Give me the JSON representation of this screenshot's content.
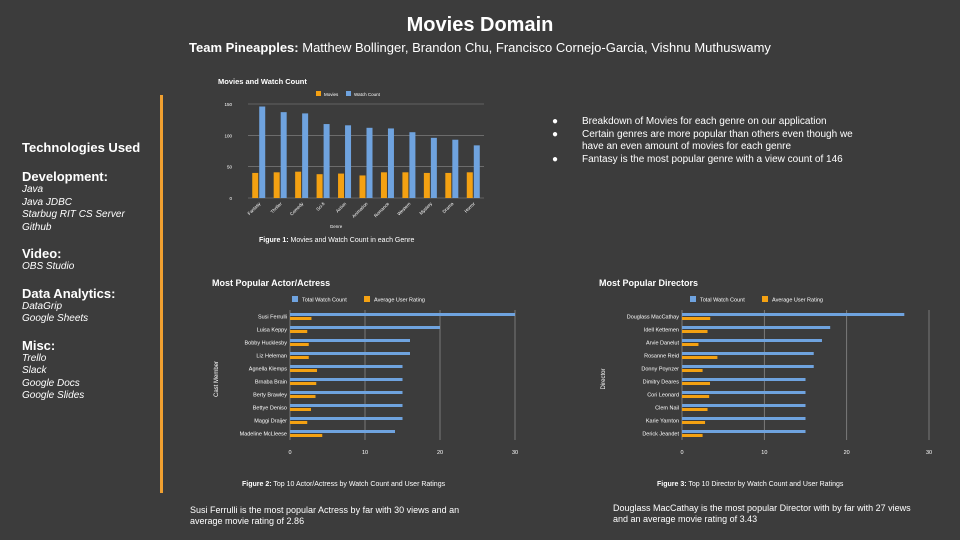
{
  "header": {
    "title": "Movies Domain",
    "team_label": "Team Pineapples:",
    "team_members": " Matthew Bollinger, Brandon Chu, Francisco Cornejo-Garcia, Vishnu Muthuswamy"
  },
  "sidebar": {
    "heading": "Technologies Used",
    "sections": [
      {
        "title": "Development:",
        "items": [
          "Java",
          "Java JDBC",
          "Starbug RIT CS Server",
          "Github"
        ]
      },
      {
        "title": "Video:",
        "items": [
          "OBS Studio"
        ]
      },
      {
        "title": "Data Analytics:",
        "items": [
          "DataGrip",
          "Google Sheets"
        ]
      },
      {
        "title": "Misc:",
        "items": [
          "Trello",
          "Slack",
          "Google Docs",
          "Google Slides"
        ]
      }
    ]
  },
  "bullets": [
    "Breakdown of Movies for each genre on our application",
    "Certain genres are more popular than others even though we have an even amount of movies for each genre",
    "Fantasy is the most popular genre with a view count of 146"
  ],
  "captions": {
    "fig1_label": "Figure 1:",
    "fig1_text": " Movies and Watch Count in each Genre",
    "fig2_label": "Figure 2:",
    "fig2_text": " Top 10 Actor/Actress by Watch Count and User Ratings",
    "fig3_label": "Figure 3:",
    "fig3_text": " Top 10 Director by Watch Count and User Ratings"
  },
  "descriptions": {
    "actor": "Susi Ferrulli is the most popular Actress by far with 30 views and an average movie rating of 2.86",
    "director": "Douglass MacCathay is the most popular Director with by far with 27 views and an average movie rating of 3.43"
  },
  "colors": {
    "blue": "#6fa3df",
    "orange": "#f4a112",
    "accent_line": "#f0a030",
    "grid": "#888888",
    "background": "#3c3c3c"
  },
  "chart_data": [
    {
      "type": "bar",
      "title": "Movies and Watch Count",
      "xlabel": "Genre",
      "ylabel": "",
      "ylim": [
        0,
        150
      ],
      "yticks": [
        0,
        50,
        100,
        150
      ],
      "legend": "top",
      "grid": true,
      "categories": [
        "Fantasy",
        "Thriller",
        "Comedy",
        "Sci-fi",
        "Action",
        "Animation",
        "Romance",
        "Western",
        "Mystery",
        "Drama",
        "Horror"
      ],
      "series": [
        {
          "name": "Movies",
          "color": "#f4a112",
          "values": [
            40,
            41,
            42,
            38,
            39,
            36,
            41,
            41,
            40,
            40,
            41
          ]
        },
        {
          "name": "Watch Count",
          "color": "#6fa3df",
          "values": [
            146,
            137,
            135,
            118,
            116,
            112,
            111,
            105,
            96,
            93,
            84
          ]
        }
      ]
    },
    {
      "type": "bar",
      "orientation": "horizontal",
      "title": "Most Popular Actor/Actress",
      "xlabel": "",
      "ylabel": "Cast Member",
      "xlim": [
        0,
        30
      ],
      "xticks": [
        0,
        10,
        20,
        30
      ],
      "legend": "top",
      "grid": true,
      "categories": [
        "Susi Ferrulli",
        "Luisa Keppy",
        "Bobby Hucklesby",
        "Liz Heleman",
        "Agnella Klemps",
        "Brnaba Brain",
        "Berty Brawley",
        "Bettye Deniso",
        "Maggi Draijer",
        "Madeline McLleese"
      ],
      "series": [
        {
          "name": "Total Watch Count",
          "color": "#6fa3df",
          "values": [
            30,
            20,
            16,
            16,
            15,
            15,
            15,
            15,
            15,
            14
          ]
        },
        {
          "name": "Average User Rating",
          "color": "#f4a112",
          "values": [
            2.86,
            2.3,
            2.5,
            2.5,
            3.6,
            3.5,
            3.4,
            2.8,
            2.3,
            4.3
          ]
        }
      ]
    },
    {
      "type": "bar",
      "orientation": "horizontal",
      "title": "Most Popular Directors",
      "xlabel": "",
      "ylabel": "Director",
      "xlim": [
        0,
        30
      ],
      "xticks": [
        0,
        10,
        20,
        30
      ],
      "legend": "top",
      "grid": true,
      "categories": [
        "Douglass MacCathay",
        "Idell Kettemen",
        "Arvie Danelut",
        "Rosanne Reid",
        "Donny Poynzer",
        "Dimitry Deares",
        "Cori Leonard",
        "Clem Nail",
        "Karie Yarnton",
        "Derick Jeandet"
      ],
      "series": [
        {
          "name": "Total Watch Count",
          "color": "#6fa3df",
          "values": [
            27,
            18,
            17,
            16,
            16,
            15,
            15,
            15,
            15,
            15
          ]
        },
        {
          "name": "Average User Rating",
          "color": "#f4a112",
          "values": [
            3.43,
            3.1,
            2.0,
            4.3,
            2.5,
            3.4,
            3.3,
            3.1,
            2.8,
            2.5
          ]
        }
      ]
    }
  ]
}
